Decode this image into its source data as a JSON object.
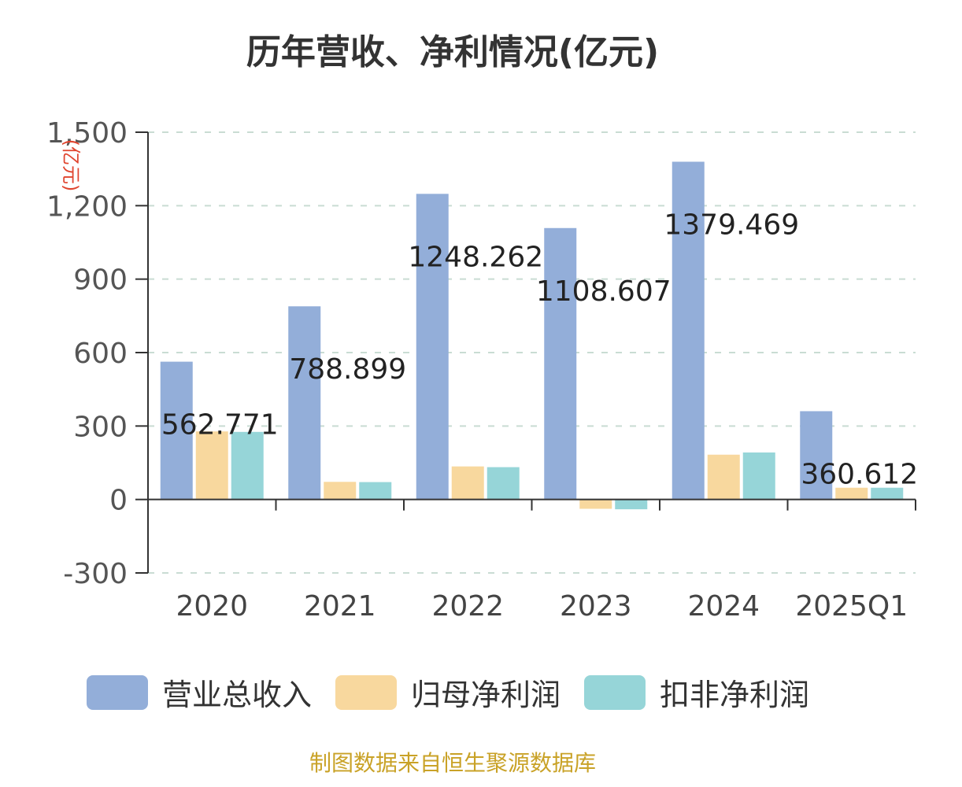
{
  "chart_data": {
    "type": "bar",
    "title": "历年营收、净利情况(亿元)",
    "ylabel": "(亿元)",
    "ylim": [
      -300,
      1500
    ],
    "yticks": [
      -300,
      0,
      300,
      600,
      900,
      1200,
      1500
    ],
    "ytick_labels": [
      "-300",
      "0",
      "300",
      "600",
      "900",
      "1,200",
      "1,500"
    ],
    "categories": [
      "2020",
      "2021",
      "2022",
      "2023",
      "2024",
      "2025Q1"
    ],
    "series": [
      {
        "name": "营业总收入",
        "color": "#93aed9",
        "values": [
          562.771,
          788.899,
          1248.262,
          1108.607,
          1379.469,
          360.612
        ]
      },
      {
        "name": "归母净利润",
        "color": "#f8d89e",
        "values": [
          278,
          72,
          135,
          -38,
          183,
          48
        ]
      },
      {
        "name": "扣非净利润",
        "color": "#96d5d8",
        "values": [
          276,
          71,
          132,
          -40,
          192,
          48
        ]
      }
    ],
    "data_labels": [
      "562.771",
      "788.899",
      "1248.262",
      "1108.607",
      "1379.469",
      "360.612"
    ],
    "grid": true,
    "legend_position": "bottom"
  },
  "source_note": "制图数据来自恒生聚源数据库"
}
